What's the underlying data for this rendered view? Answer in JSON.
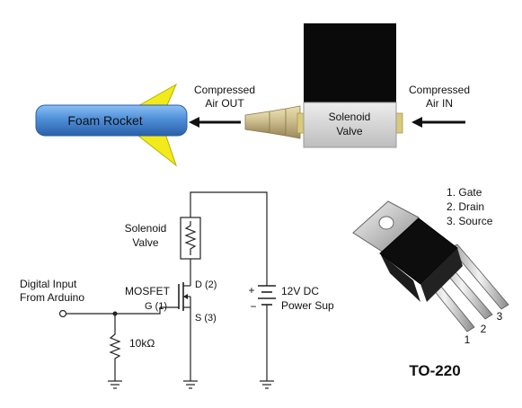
{
  "top": {
    "rocket_label": "Foam Rocket",
    "out_label_line1": "Compressed",
    "out_label_line2": "Air OUT",
    "in_label_line1": "Compressed",
    "in_label_line2": "Air IN",
    "valve_label_line1": "Solenoid",
    "valve_label_line2": "Valve"
  },
  "circuit": {
    "coil_label_line1": "Solenoid",
    "coil_label_line2": "Valve",
    "mosfet_label": "MOSFET",
    "gate_label": "G (1)",
    "drain_label": "D (2)",
    "source_label": "S (3)",
    "input_label_line1": "Digital Input",
    "input_label_line2": "From Arduino",
    "resistor_label": "10kΩ",
    "supply_label_line1": "12V DC",
    "supply_label_line2": "Power Sup",
    "plus_sign": "+",
    "minus_sign": "−"
  },
  "package": {
    "pins": [
      "Gate",
      "Drain",
      "Source"
    ],
    "pin_numbers": [
      "1",
      "2",
      "3"
    ],
    "name": "TO-220"
  },
  "colors": {
    "rocket_body": "#4f8fd8",
    "fins": "#f2ea1a",
    "valve_body": "#d6d6d6",
    "valve_coil": "#0a0a0a",
    "fitting": "#d8ca7a",
    "nozzle": "#c9b98a"
  }
}
